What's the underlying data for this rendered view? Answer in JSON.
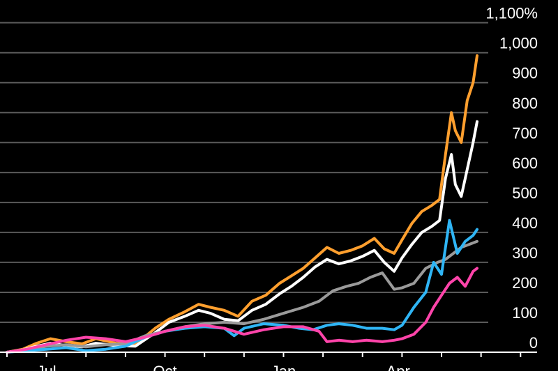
{
  "chart_data": {
    "type": "line",
    "title": "",
    "xlabel": "",
    "ylabel": "",
    "ylim": [
      0,
      1100
    ],
    "yticks": [
      {
        "value": 0,
        "label": "0"
      },
      {
        "value": 100,
        "label": "100"
      },
      {
        "value": 200,
        "label": "200"
      },
      {
        "value": 300,
        "label": "300"
      },
      {
        "value": 400,
        "label": "400"
      },
      {
        "value": 500,
        "label": "500"
      },
      {
        "value": 600,
        "label": "600"
      },
      {
        "value": 700,
        "label": "700"
      },
      {
        "value": 800,
        "label": "800"
      },
      {
        "value": 900,
        "label": "900"
      },
      {
        "value": 1000,
        "label": "1,000"
      },
      {
        "value": 1100,
        "label": "1,100%"
      }
    ],
    "xticks": [
      {
        "value": 20,
        "label": "Jul"
      },
      {
        "value": 80,
        "label": "Oct"
      },
      {
        "value": 140,
        "label": "Jan"
      },
      {
        "value": 198,
        "label": "Apr"
      }
    ],
    "grid": true,
    "series": [
      {
        "color": "#ff9f2e",
        "x": [
          0,
          8,
          15,
          22,
          30,
          38,
          45,
          55,
          65,
          75,
          82,
          90,
          97,
          103,
          110,
          117,
          124,
          131,
          138,
          144,
          150,
          156,
          162,
          168,
          174,
          180,
          186,
          191,
          196,
          200,
          205,
          210,
          215,
          219,
          222,
          225,
          227,
          230,
          233,
          236,
          238
        ],
        "y": [
          0,
          10,
          30,
          45,
          35,
          28,
          45,
          30,
          25,
          80,
          110,
          135,
          160,
          150,
          140,
          120,
          170,
          190,
          230,
          255,
          280,
          315,
          350,
          330,
          340,
          355,
          380,
          345,
          330,
          375,
          430,
          470,
          490,
          510,
          660,
          800,
          740,
          700,
          840,
          900,
          990
        ]
      },
      {
        "color": "#ffffff",
        "x": [
          0,
          8,
          15,
          22,
          30,
          38,
          45,
          55,
          65,
          75,
          82,
          90,
          97,
          103,
          110,
          117,
          124,
          131,
          138,
          144,
          150,
          156,
          162,
          168,
          174,
          180,
          186,
          191,
          196,
          200,
          205,
          210,
          215,
          219,
          222,
          225,
          227,
          230,
          233,
          236,
          238
        ],
        "y": [
          0,
          8,
          20,
          30,
          22,
          18,
          30,
          22,
          20,
          65,
          100,
          120,
          140,
          130,
          110,
          105,
          140,
          160,
          195,
          220,
          250,
          285,
          310,
          295,
          305,
          320,
          340,
          300,
          270,
          315,
          360,
          400,
          420,
          440,
          580,
          660,
          560,
          520,
          610,
          700,
          770
        ]
      },
      {
        "color": "#9a9a9a",
        "x": [
          0,
          10,
          20,
          30,
          40,
          50,
          60,
          70,
          80,
          90,
          100,
          110,
          120,
          130,
          140,
          150,
          158,
          165,
          172,
          178,
          184,
          190,
          196,
          200,
          206,
          212,
          218,
          222,
          226,
          230,
          234,
          238
        ],
        "y": [
          0,
          8,
          20,
          25,
          18,
          25,
          28,
          55,
          70,
          85,
          95,
          100,
          95,
          110,
          130,
          150,
          170,
          205,
          220,
          230,
          250,
          265,
          210,
          215,
          230,
          280,
          300,
          310,
          330,
          350,
          360,
          370
        ]
      },
      {
        "color": "#2fb5f5",
        "x": [
          0,
          10,
          20,
          30,
          40,
          50,
          60,
          70,
          80,
          90,
          100,
          110,
          115,
          120,
          130,
          140,
          148,
          155,
          162,
          168,
          175,
          182,
          190,
          196,
          200,
          206,
          212,
          216,
          220,
          224,
          228,
          232,
          236,
          238
        ],
        "y": [
          0,
          5,
          10,
          15,
          5,
          10,
          20,
          50,
          70,
          80,
          85,
          80,
          55,
          80,
          95,
          90,
          80,
          75,
          90,
          95,
          90,
          80,
          80,
          75,
          90,
          150,
          200,
          300,
          260,
          440,
          330,
          370,
          390,
          410
        ]
      },
      {
        "color": "#ff44aa",
        "x": [
          0,
          10,
          20,
          30,
          40,
          50,
          60,
          70,
          80,
          90,
          100,
          110,
          120,
          130,
          140,
          150,
          158,
          162,
          168,
          175,
          182,
          190,
          196,
          200,
          206,
          212,
          216,
          220,
          224,
          228,
          232,
          236,
          238
        ],
        "y": [
          0,
          10,
          25,
          40,
          50,
          45,
          35,
          50,
          70,
          85,
          90,
          80,
          60,
          75,
          85,
          85,
          70,
          35,
          40,
          35,
          40,
          35,
          40,
          45,
          60,
          100,
          150,
          190,
          230,
          250,
          220,
          270,
          280
        ]
      }
    ]
  }
}
